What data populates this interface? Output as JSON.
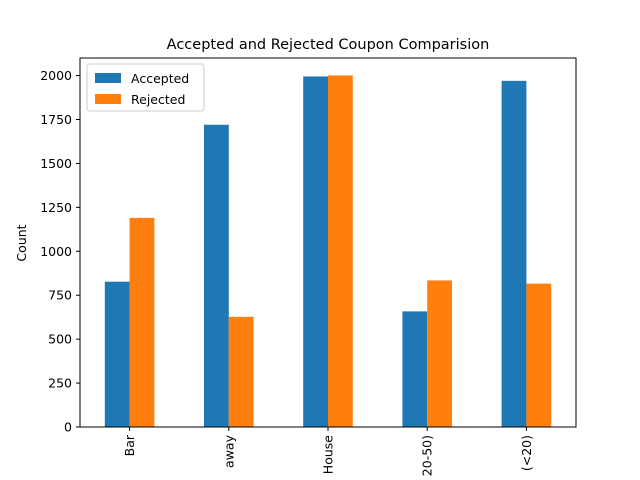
{
  "chart_data": {
    "type": "bar",
    "title": "Accepted and Rejected Coupon Comparision",
    "xlabel": "",
    "ylabel": "Count",
    "categories": [
      "Bar",
      "away",
      "House",
      "20-50)",
      "(<20)"
    ],
    "series": [
      {
        "name": "Accepted",
        "color": "#1f77b4",
        "values": [
          827,
          1720,
          1995,
          658,
          1970
        ]
      },
      {
        "name": "Rejected",
        "color": "#ff7f0e",
        "values": [
          1190,
          627,
          2001,
          834,
          816
        ]
      }
    ],
    "ylim": [
      0,
      2100
    ],
    "yticks": [
      0,
      250,
      500,
      750,
      1000,
      1250,
      1500,
      1750,
      2000
    ],
    "grid": false,
    "legend_position": "top-left"
  }
}
